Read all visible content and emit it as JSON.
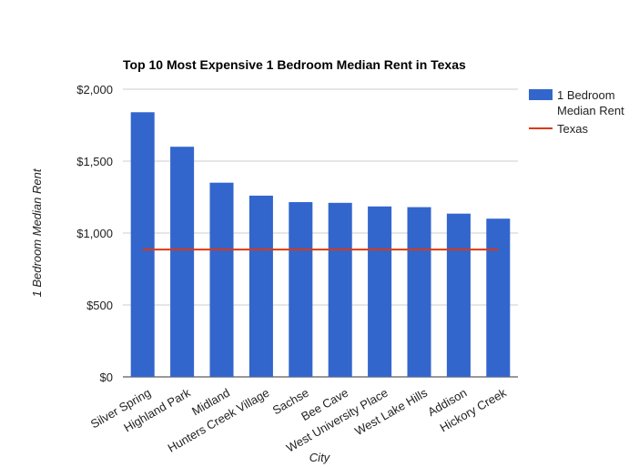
{
  "chart_data": {
    "type": "bar",
    "title": "Top 10 Most Expensive 1 Bedroom Median Rent in Texas",
    "xlabel": "City",
    "ylabel": "1 Bedroom Median Rent",
    "categories": [
      "Silver Spring",
      "Highland Park",
      "Midland",
      "Hunters Creek Village",
      "Sachse",
      "Bee Cave",
      "West University Place",
      "West Lake Hills",
      "Addison",
      "Hickory Creek"
    ],
    "series": [
      {
        "name": "1 Bedroom Median Rent",
        "type": "bar",
        "color": "#3366cc",
        "values": [
          1840,
          1600,
          1350,
          1260,
          1215,
          1210,
          1185,
          1180,
          1135,
          1100
        ]
      },
      {
        "name": "Texas",
        "type": "line",
        "color": "#dc3912",
        "values": [
          885,
          885,
          885,
          885,
          885,
          885,
          885,
          885,
          885,
          885
        ]
      }
    ],
    "ylim": [
      0,
      2000
    ],
    "yticks": [
      0,
      500,
      1000,
      1500,
      2000
    ],
    "ytick_labels": [
      "$0",
      "$500",
      "$1,000",
      "$1,500",
      "$2,000"
    ],
    "grid": true,
    "legend_position": "right",
    "legend_labels": [
      {
        "lines": [
          "1 Bedroom",
          "Median Rent"
        ]
      },
      {
        "lines": [
          "Texas"
        ]
      }
    ]
  }
}
